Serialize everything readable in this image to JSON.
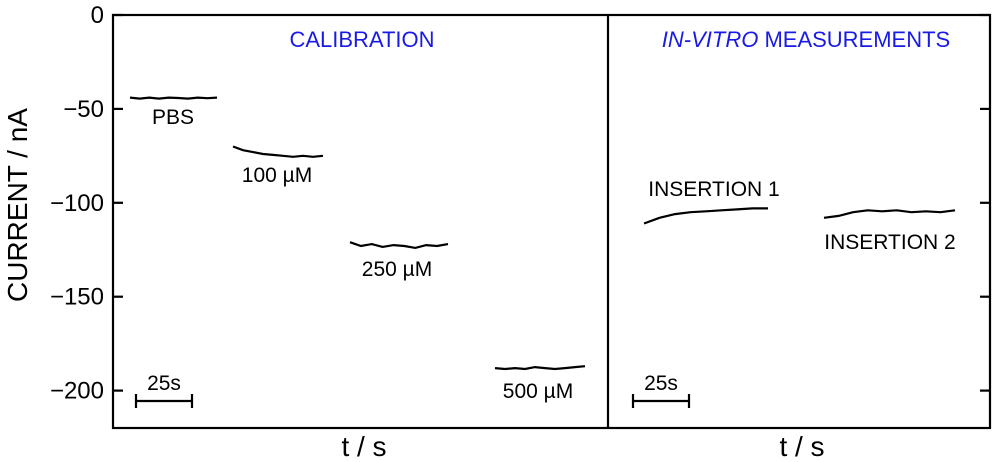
{
  "chart_data": {
    "type": "line",
    "ylabel": "CURRENT / nA",
    "ylim": [
      -220,
      0
    ],
    "yticks": [
      0,
      -50,
      -100,
      -150,
      -200
    ],
    "grid": false,
    "panels": [
      {
        "title_normal": "CALIBRATION",
        "title_italic": "",
        "xlabel": "t / s",
        "scalebar": "25s",
        "series": [
          {
            "name": "PBS",
            "x": [
              0,
              5,
              10,
              15,
              20,
              25,
              30,
              35,
              40,
              45
            ],
            "y": [
              -44,
              -44.5,
              -44,
              -44.5,
              -44,
              -44.2,
              -44.5,
              -44,
              -44.3,
              -44
            ]
          },
          {
            "name": "100 µM",
            "x": [
              0,
              5,
              10,
              15,
              20,
              25,
              30,
              35,
              40,
              45
            ],
            "y": [
              -70,
              -72,
              -73,
              -74,
              -74.5,
              -75,
              -75.5,
              -75,
              -75.5,
              -75
            ]
          },
          {
            "name": "250 µM",
            "x": [
              0,
              5,
              10,
              15,
              20,
              25,
              30,
              35,
              40,
              45
            ],
            "y": [
              -121,
              -123,
              -122,
              -123.5,
              -122.5,
              -123,
              -124,
              -122.5,
              -123,
              -122
            ]
          },
          {
            "name": "500 µM",
            "x": [
              0,
              5,
              10,
              15,
              20,
              25,
              30,
              35,
              40,
              45
            ],
            "y": [
              -188,
              -188.5,
              -188,
              -188.5,
              -187.5,
              -188,
              -188.5,
              -188,
              -187.5,
              -187
            ]
          }
        ]
      },
      {
        "title_normal": "MEASUREMENTS",
        "title_italic": "IN-VITRO",
        "xlabel": "t / s",
        "scalebar": "25s",
        "series": [
          {
            "name": "INSERTION 1",
            "x": [
              0,
              8,
              16,
              24,
              32,
              40,
              48,
              56,
              64
            ],
            "y": [
              -111,
              -108,
              -106,
              -105,
              -104.5,
              -104,
              -103.5,
              -103,
              -103
            ]
          },
          {
            "name": "INSERTION 2",
            "x": [
              0,
              8,
              16,
              24,
              32,
              40,
              48,
              56,
              64,
              72
            ],
            "y": [
              -108,
              -107,
              -105,
              -104,
              -104.5,
              -104,
              -105,
              -104.5,
              -105,
              -104
            ]
          }
        ]
      }
    ]
  }
}
